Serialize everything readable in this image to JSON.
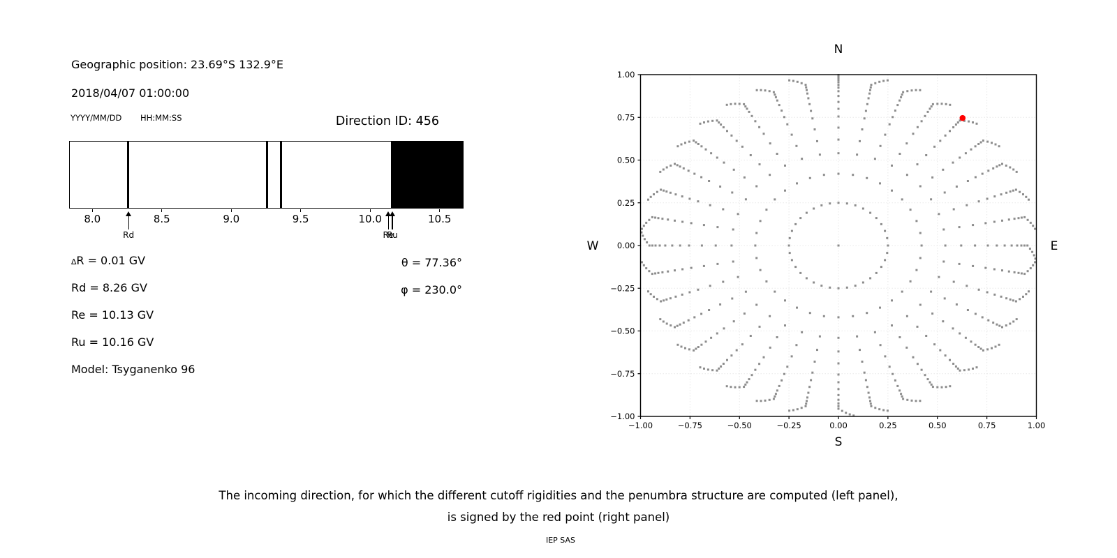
{
  "left_panel": {
    "geo_position": "Geographic position: 23.69°S 132.9°E",
    "datetime": "2018/04/07 01:00:00",
    "date_format_label": "YYYY/MM/DD",
    "time_format_label": "HH:MM:SS",
    "direction_id": "Direction ID: 456",
    "values": [
      {
        "sym": "∆",
        "rest": "R = 0.01 GV"
      },
      {
        "sym": "",
        "rest": "Rd = 8.26 GV"
      },
      {
        "sym": "",
        "rest": "Re = 10.13 GV"
      },
      {
        "sym": "",
        "rest": "Ru = 10.16 GV"
      },
      {
        "sym": "",
        "rest": "Model: Tsyganenko 96"
      }
    ],
    "angles": [
      "θ = 77.36°",
      "φ = 230.0°"
    ]
  },
  "caption": {
    "line1": "The incoming direction, for which the different cutoff rigidities and the penumbra structure are computed (left panel),",
    "line2": "is signed by the red point (right panel)",
    "credit": "IEP SAS"
  },
  "chart_data": [
    {
      "type": "barcode-penumbra",
      "unit": "GV",
      "xlim": [
        7.84,
        10.67
      ],
      "xticks": [
        8.0,
        8.5,
        9.0,
        9.5,
        10.0,
        10.5
      ],
      "forbidden_lines": [
        8.26,
        9.26,
        9.36
      ],
      "forbidden_band": [
        10.15,
        10.67
      ],
      "markers": [
        {
          "value": 8.26,
          "label": "Rd"
        },
        {
          "value": 10.13,
          "label": "Re"
        },
        {
          "value": 10.16,
          "label": "Ru"
        }
      ],
      "delta_R_GV": 0.01,
      "Rd_GV": 8.26,
      "Re_GV": 10.13,
      "Ru_GV": 10.16,
      "theta_deg": 77.36,
      "phi_deg": 230.0,
      "model": "Tsyganenko 96"
    },
    {
      "type": "scatter",
      "xlim": [
        -1,
        1
      ],
      "ylim": [
        -1,
        1
      ],
      "tick_values": [
        -1,
        -0.75,
        -0.5,
        -0.25,
        0,
        0.25,
        0.5,
        0.75,
        1
      ],
      "grid": true,
      "compass": {
        "north": "N",
        "south": "S",
        "east": "E",
        "west": "W"
      },
      "rays": {
        "azimuth_count": 36,
        "azimuth_step_deg": 10,
        "radii": [
          0.25,
          0.42,
          0.54,
          0.62,
          0.69,
          0.755,
          0.8,
          0.84,
          0.875,
          0.903,
          0.924,
          0.94,
          0.955,
          0.968,
          0.98,
          0.99,
          0.998
        ],
        "tip_hook_deg_per_step": 1.1,
        "tip_hook_start_index": 12
      },
      "center_dot": true,
      "red_point": {
        "x": 0.627,
        "y": 0.746
      },
      "colors": {
        "dot": "#8c8c8c",
        "red": "#ff0000",
        "grid": "#e8e8e8",
        "axis": "#000000"
      }
    }
  ]
}
